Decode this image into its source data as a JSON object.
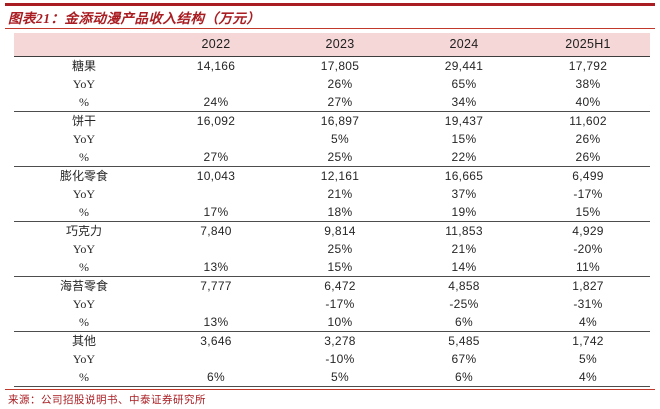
{
  "title": "图表21：金添动漫产品收入结构（万元）",
  "source": "来源：公司招股说明书、中泰证券研究所",
  "colors": {
    "accent_red": "#a91d22",
    "thin_line_red": "#c0392b",
    "header_pink": "#f5d7d7",
    "separator_gray": "#4d4d4d",
    "body_text": "#262626"
  },
  "chart_data": {
    "type": "table",
    "title": "金添动漫产品收入结构（万元）",
    "columns": [
      "",
      "2022",
      "2023",
      "2024",
      "2025H1"
    ],
    "rows": [
      [
        "糖果",
        "14,166",
        "17,805",
        "29,441",
        "17,792"
      ],
      [
        "YoY",
        "",
        "26%",
        "65%",
        "38%"
      ],
      [
        "%",
        "24%",
        "27%",
        "34%",
        "40%"
      ],
      [
        "饼干",
        "16,092",
        "16,897",
        "19,437",
        "11,602"
      ],
      [
        "YoY",
        "",
        "5%",
        "15%",
        "26%"
      ],
      [
        "%",
        "27%",
        "25%",
        "22%",
        "26%"
      ],
      [
        "膨化零食",
        "10,043",
        "12,161",
        "16,665",
        "6,499"
      ],
      [
        "YoY",
        "",
        "21%",
        "37%",
        "-17%"
      ],
      [
        "%",
        "17%",
        "18%",
        "19%",
        "15%"
      ],
      [
        "巧克力",
        "7,840",
        "9,814",
        "11,853",
        "4,929"
      ],
      [
        "YoY",
        "",
        "25%",
        "21%",
        "-20%"
      ],
      [
        "%",
        "13%",
        "15%",
        "14%",
        "11%"
      ],
      [
        "海苔零食",
        "7,777",
        "6,472",
        "4,858",
        "1,827"
      ],
      [
        "YoY",
        "",
        "-17%",
        "-25%",
        "-31%"
      ],
      [
        "%",
        "13%",
        "10%",
        "6%",
        "4%"
      ],
      [
        "其他",
        "3,646",
        "3,278",
        "5,485",
        "1,742"
      ],
      [
        "YoY",
        "",
        "-10%",
        "67%",
        "5%"
      ],
      [
        "%",
        "6%",
        "5%",
        "6%",
        "4%"
      ]
    ]
  }
}
